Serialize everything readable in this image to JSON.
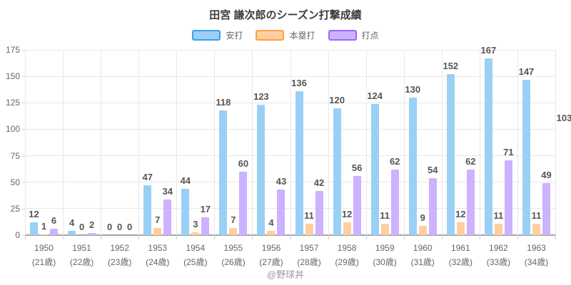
{
  "header": {
    "title": "田宮 謙次郎のシーズン打撃成績"
  },
  "footer": {
    "credit": "@野球丼"
  },
  "colors": {
    "hits_fill": "#9AD0F5",
    "hits_border": "#36A2EB",
    "homeruns_fill": "#FFCF9F",
    "homeruns_border": "#FF9F40",
    "rbi_fill": "#CCB2FF",
    "rbi_border": "#9966FF",
    "grid": "#e8e8e8",
    "axis": "#a6a6a6",
    "tick_text": "#666666",
    "bar_label_text": "#555555"
  },
  "chart_data": {
    "type": "bar",
    "title": "田宮 謙次郎のシーズン打撃成績",
    "categories": [
      "1950",
      "1951",
      "1952",
      "1953",
      "1954",
      "1955",
      "1956",
      "1957",
      "1958",
      "1959",
      "1960",
      "1961",
      "1962",
      "1963"
    ],
    "category_sub": [
      "(21歳)",
      "(22歳)",
      "(23歳)",
      "(24歳)",
      "(25歳)",
      "(26歳)",
      "(27歳)",
      "(28歳)",
      "(29歳)",
      "(30歳)",
      "(31歳)",
      "(32歳)",
      "(33歳)",
      "(34歳)"
    ],
    "series": [
      {
        "name": "安打",
        "fill": "#9AD0F5",
        "border": "#36A2EB",
        "values": [
          12,
          4,
          0,
          47,
          44,
          118,
          123,
          136,
          120,
          124,
          130,
          152,
          167,
          147
        ]
      },
      {
        "name": "本塁打",
        "fill": "#FFCF9F",
        "border": "#FF9F40",
        "values": [
          1,
          0,
          0,
          7,
          3,
          7,
          4,
          11,
          12,
          11,
          9,
          12,
          11,
          11
        ]
      },
      {
        "name": "打点",
        "fill": "#CCB2FF",
        "border": "#9966FF",
        "values": [
          6,
          2,
          0,
          34,
          17,
          60,
          43,
          42,
          56,
          62,
          54,
          62,
          71,
          49
        ]
      }
    ],
    "ylim": [
      0,
      175
    ],
    "yticks": [
      0,
      25,
      50,
      75,
      100,
      125,
      150,
      175
    ],
    "grid": true,
    "legend_position": "top",
    "xlabel": "",
    "ylabel": "",
    "offscreen_next_bar_label": "103"
  }
}
